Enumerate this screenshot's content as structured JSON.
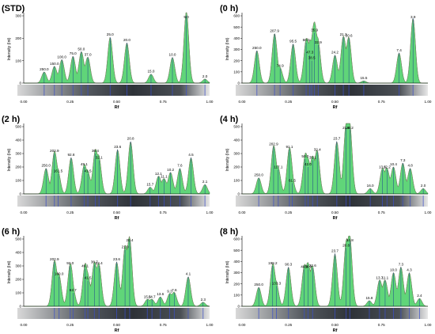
{
  "colors": {
    "fill": "#4fd06a",
    "fill_edge": "#2e9e45",
    "baseline": "#9a6b6b",
    "marker": "#1d3f8f",
    "axis": "#000000"
  },
  "chart_data": [
    {
      "type": "area",
      "title": "(STD)",
      "ylabel": "Intensity (Int)",
      "xlabel": "Rf",
      "xlim": [
        0,
        1
      ],
      "ylim": [
        0,
        300
      ],
      "yticks": [
        0,
        100,
        200,
        300
      ],
      "xticks": [
        "0.00",
        "0.25",
        "0.50",
        "0.75",
        "1.00"
      ],
      "peaks": [
        {
          "x": 0.11,
          "y": 50,
          "label": "250.0"
        },
        {
          "x": 0.165,
          "y": 75,
          "label": "150.0"
        },
        {
          "x": 0.205,
          "y": 105,
          "label": "100.0"
        },
        {
          "x": 0.265,
          "y": 120,
          "label": "75.0"
        },
        {
          "x": 0.31,
          "y": 140,
          "label": "50.0"
        },
        {
          "x": 0.345,
          "y": 115,
          "label": "37.0"
        },
        {
          "x": 0.465,
          "y": 205,
          "label": "25.0"
        },
        {
          "x": 0.555,
          "y": 180,
          "label": "20.0"
        },
        {
          "x": 0.685,
          "y": 40,
          "label": "15.0"
        },
        {
          "x": 0.8,
          "y": 115,
          "label": "10.0"
        },
        {
          "x": 0.875,
          "y": 320,
          "label": "5.0"
        },
        {
          "x": 0.975,
          "y": 18,
          "label": "2.0"
        }
      ]
    },
    {
      "type": "area",
      "title": "(0 h)",
      "ylabel": "Intensity (Int)",
      "xlabel": "Rf",
      "xlim": [
        0,
        1
      ],
      "ylim": [
        0,
        600
      ],
      "yticks": [
        0,
        100,
        200,
        300,
        400,
        500,
        600
      ],
      "xticks": [
        "0.00",
        "0.25",
        "0.50",
        "0.75",
        "1.00"
      ],
      "peaks": [
        {
          "x": 0.08,
          "y": 290,
          "label": "250.0"
        },
        {
          "x": 0.175,
          "y": 440,
          "label": "207.9"
        },
        {
          "x": 0.205,
          "y": 130,
          "label": "74.9"
        },
        {
          "x": 0.275,
          "y": 350,
          "label": "95.5"
        },
        {
          "x": 0.345,
          "y": 360,
          "label": "50.0"
        },
        {
          "x": 0.365,
          "y": 250,
          "label": "47.3"
        },
        {
          "x": 0.39,
          "y": 450,
          "label": "35.9"
        },
        {
          "x": 0.375,
          "y": 200,
          "label": "38.5"
        },
        {
          "x": 0.41,
          "y": 340,
          "label": "32.9"
        },
        {
          "x": 0.5,
          "y": 250,
          "label": "24.2"
        },
        {
          "x": 0.545,
          "y": 410,
          "label": "21.3"
        },
        {
          "x": 0.575,
          "y": 400,
          "label": "20.6"
        },
        {
          "x": 0.655,
          "y": 20,
          "label": "15.5"
        },
        {
          "x": 0.845,
          "y": 270,
          "label": "7.4"
        },
        {
          "x": 0.92,
          "y": 580,
          "label": "3.9"
        }
      ]
    },
    {
      "type": "area",
      "title": "(2 h)",
      "ylabel": "Intensity (Int)",
      "xlabel": "Rf",
      "xlim": [
        0,
        1
      ],
      "ylim": [
        0,
        500
      ],
      "yticks": [
        0,
        100,
        200,
        300,
        400,
        500
      ],
      "xticks": [
        "0.00",
        "0.25",
        "0.50",
        "0.75",
        "1.00"
      ],
      "peaks": [
        {
          "x": 0.12,
          "y": 190,
          "label": "250.0"
        },
        {
          "x": 0.165,
          "y": 300,
          "label": "202.9"
        },
        {
          "x": 0.185,
          "y": 150,
          "label": "161.5"
        },
        {
          "x": 0.255,
          "y": 270,
          "label": "92.8"
        },
        {
          "x": 0.325,
          "y": 200,
          "label": "49.1"
        },
        {
          "x": 0.345,
          "y": 150,
          "label": "41.5"
        },
        {
          "x": 0.385,
          "y": 300,
          "label": "36.4"
        },
        {
          "x": 0.405,
          "y": 250,
          "label": "32.1"
        },
        {
          "x": 0.505,
          "y": 330,
          "label": "23.6"
        },
        {
          "x": 0.575,
          "y": 390,
          "label": "20.8"
        },
        {
          "x": 0.68,
          "y": 50,
          "label": "15.7"
        },
        {
          "x": 0.725,
          "y": 130,
          "label": "12.1"
        },
        {
          "x": 0.755,
          "y": 110,
          "label": "11.1"
        },
        {
          "x": 0.79,
          "y": 160,
          "label": "10.2"
        },
        {
          "x": 0.84,
          "y": 190,
          "label": "7.6"
        },
        {
          "x": 0.9,
          "y": 270,
          "label": "4.5"
        },
        {
          "x": 0.975,
          "y": 70,
          "label": "2.1"
        }
      ]
    },
    {
      "type": "area",
      "title": "(4 h)",
      "ylabel": "Intensity (Int)",
      "xlabel": "Rf",
      "xlim": [
        0,
        1
      ],
      "ylim": [
        0,
        500
      ],
      "yticks": [
        0,
        100,
        200,
        300,
        400,
        500
      ],
      "xticks": [
        "0.00",
        "0.25",
        "0.50",
        "0.75",
        "1.00"
      ],
      "peaks": [
        {
          "x": 0.09,
          "y": 120,
          "label": "250.0"
        },
        {
          "x": 0.17,
          "y": 350,
          "label": "202.9"
        },
        {
          "x": 0.195,
          "y": 180,
          "label": "117.1"
        },
        {
          "x": 0.255,
          "y": 330,
          "label": "91.1"
        },
        {
          "x": 0.27,
          "y": 80,
          "label": "61.5"
        },
        {
          "x": 0.34,
          "y": 260,
          "label": "50.0"
        },
        {
          "x": 0.355,
          "y": 200,
          "label": "42.0"
        },
        {
          "x": 0.38,
          "y": 250,
          "label": "35.1"
        },
        {
          "x": 0.405,
          "y": 310,
          "label": "32.4"
        },
        {
          "x": 0.51,
          "y": 390,
          "label": "23.7"
        },
        {
          "x": 0.56,
          "y": 490,
          "label": "21.6"
        },
        {
          "x": 0.58,
          "y": 480,
          "label": "20.2"
        },
        {
          "x": 0.69,
          "y": 40,
          "label": "16.0"
        },
        {
          "x": 0.755,
          "y": 180,
          "label": "13.6"
        },
        {
          "x": 0.78,
          "y": 180,
          "label": "12.2"
        },
        {
          "x": 0.815,
          "y": 200,
          "label": "10.4"
        },
        {
          "x": 0.865,
          "y": 230,
          "label": "7.3"
        },
        {
          "x": 0.905,
          "y": 190,
          "label": "4.8"
        },
        {
          "x": 0.975,
          "y": 40,
          "label": "2.0"
        }
      ]
    },
    {
      "type": "area",
      "title": "(6 h)",
      "ylabel": "Intensity (Int)",
      "xlabel": "Rf",
      "xlim": [
        0,
        1
      ],
      "ylim": [
        0,
        500
      ],
      "yticks": [
        0,
        100,
        200,
        300,
        400,
        500
      ],
      "xticks": [
        "0.00",
        "0.25",
        "0.50",
        "0.75",
        "1.00"
      ],
      "peaks": [
        {
          "x": 0.165,
          "y": 330,
          "label": "202.9"
        },
        {
          "x": 0.19,
          "y": 220,
          "label": "160.0"
        },
        {
          "x": 0.25,
          "y": 300,
          "label": "92.0"
        },
        {
          "x": 0.265,
          "y": 100,
          "label": "62.7"
        },
        {
          "x": 0.33,
          "y": 280,
          "label": "49.1"
        },
        {
          "x": 0.345,
          "y": 190,
          "label": "41.5"
        },
        {
          "x": 0.38,
          "y": 310,
          "label": "36.7"
        },
        {
          "x": 0.405,
          "y": 300,
          "label": "32.4"
        },
        {
          "x": 0.5,
          "y": 330,
          "label": "23.6"
        },
        {
          "x": 0.545,
          "y": 420,
          "label": "21.0"
        },
        {
          "x": 0.57,
          "y": 490,
          "label": "20.4"
        },
        {
          "x": 0.665,
          "y": 50,
          "label": "15.6"
        },
        {
          "x": 0.69,
          "y": 50,
          "label": "14.7"
        },
        {
          "x": 0.735,
          "y": 70,
          "label": "13.6"
        },
        {
          "x": 0.785,
          "y": 90,
          "label": "9.3"
        },
        {
          "x": 0.81,
          "y": 100,
          "label": "7.6"
        },
        {
          "x": 0.885,
          "y": 220,
          "label": "4.1"
        },
        {
          "x": 0.965,
          "y": 30,
          "label": "2.3"
        }
      ]
    },
    {
      "type": "area",
      "title": "(8 h)",
      "ylabel": "Intensity (Int)",
      "xlabel": "Rf",
      "xlim": [
        0,
        1
      ],
      "ylim": [
        0,
        600
      ],
      "yticks": [
        0,
        100,
        200,
        300,
        400,
        500,
        600
      ],
      "xticks": [
        "0.00",
        "0.25",
        "0.50",
        "0.75",
        "1.00"
      ],
      "peaks": [
        {
          "x": 0.09,
          "y": 170,
          "label": "250.0"
        },
        {
          "x": 0.165,
          "y": 360,
          "label": "198.2"
        },
        {
          "x": 0.185,
          "y": 180,
          "label": "133.3"
        },
        {
          "x": 0.25,
          "y": 350,
          "label": "90.3"
        },
        {
          "x": 0.335,
          "y": 330,
          "label": "48.3"
        },
        {
          "x": 0.355,
          "y": 330,
          "label": "38.9"
        },
        {
          "x": 0.38,
          "y": 340,
          "label": "32.6"
        },
        {
          "x": 0.5,
          "y": 470,
          "label": "23.7"
        },
        {
          "x": 0.56,
          "y": 520,
          "label": "20.8"
        },
        {
          "x": 0.58,
          "y": 580,
          "label": "14.8"
        },
        {
          "x": 0.685,
          "y": 50,
          "label": "15.8"
        },
        {
          "x": 0.74,
          "y": 230,
          "label": "13.7"
        },
        {
          "x": 0.77,
          "y": 230,
          "label": "11.1"
        },
        {
          "x": 0.815,
          "y": 300,
          "label": "10.0"
        },
        {
          "x": 0.855,
          "y": 350,
          "label": "7.3"
        },
        {
          "x": 0.9,
          "y": 300,
          "label": "4.3"
        },
        {
          "x": 0.955,
          "y": 70,
          "label": "2.4"
        }
      ]
    }
  ]
}
